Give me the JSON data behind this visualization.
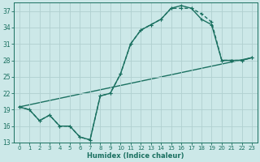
{
  "xlabel": "Humidex (Indice chaleur)",
  "background_color": "#cce8e8",
  "grid_color": "#b0d0d0",
  "line_color": "#1a7060",
  "xlim": [
    -0.5,
    23.5
  ],
  "ylim": [
    13,
    38.5
  ],
  "yticks": [
    13,
    16,
    19,
    22,
    25,
    28,
    31,
    34,
    37
  ],
  "xticks": [
    0,
    1,
    2,
    3,
    4,
    5,
    6,
    7,
    8,
    9,
    10,
    11,
    12,
    13,
    14,
    15,
    16,
    17,
    18,
    19,
    20,
    21,
    22,
    23
  ],
  "line1_x": [
    0,
    1,
    2,
    3,
    4,
    5,
    6,
    7,
    8,
    9,
    10,
    11,
    12,
    13,
    14,
    15,
    16,
    17,
    18,
    19,
    20,
    21,
    22,
    23
  ],
  "line1_y": [
    19.5,
    19.0,
    17.0,
    18.0,
    16.0,
    16.0,
    14.0,
    13.5,
    21.5,
    22.0,
    25.5,
    31.0,
    33.5,
    34.5,
    35.5,
    37.5,
    37.5,
    37.5,
    36.5,
    35.0,
    28.0,
    28.0,
    28.0,
    28.5
  ],
  "line2_x": [
    0,
    1,
    2,
    3,
    4,
    5,
    6,
    7,
    8,
    9,
    10,
    11,
    12,
    13,
    14,
    15,
    16,
    17,
    18,
    19,
    20,
    21,
    22,
    23
  ],
  "line2_y": [
    19.5,
    19.0,
    17.0,
    18.0,
    16.0,
    16.0,
    14.0,
    13.5,
    21.5,
    22.0,
    25.5,
    31.0,
    33.5,
    34.5,
    35.5,
    37.5,
    38.0,
    37.5,
    35.5,
    34.5,
    28.0,
    28.0,
    28.0,
    28.5
  ],
  "line3_x": [
    0,
    23
  ],
  "line3_y": [
    19.5,
    28.5
  ],
  "marker_size": 3.5,
  "line_width": 1.0
}
